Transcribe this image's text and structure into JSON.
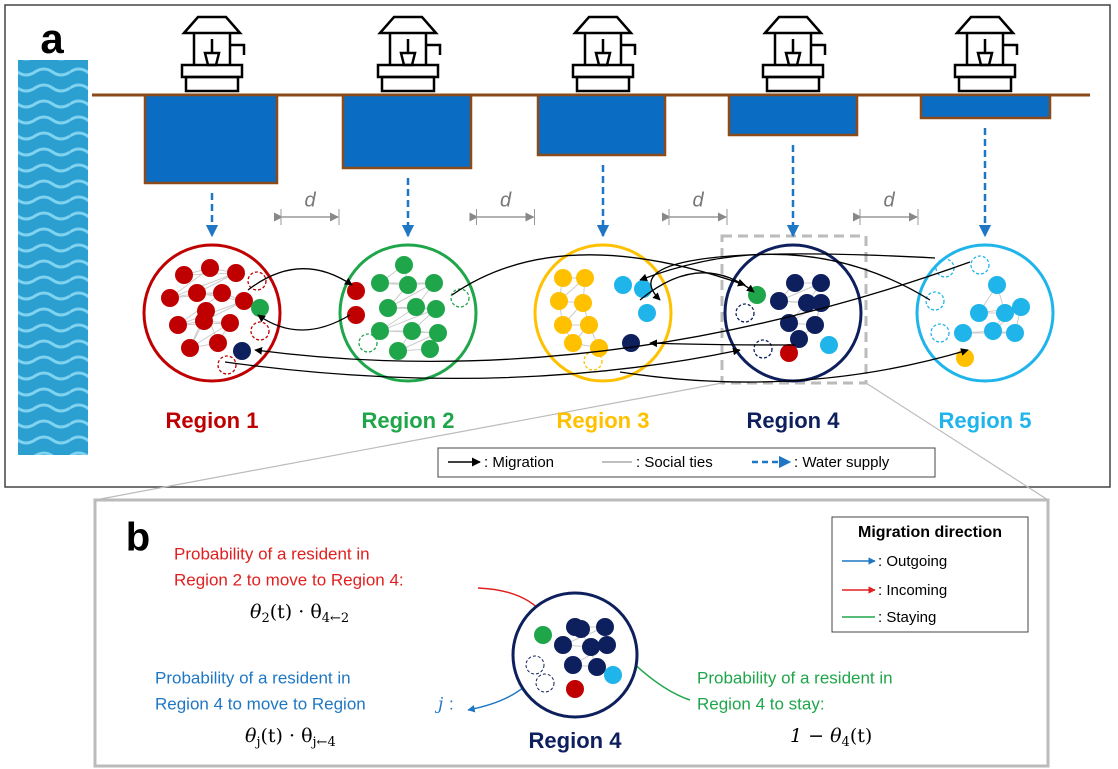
{
  "panel_a": {
    "label": "a",
    "distance_label": "d",
    "regions": [
      {
        "name": "Region 1",
        "color": "#c00000"
      },
      {
        "name": "Region 2",
        "color": "#1fa64a"
      },
      {
        "name": "Region 3",
        "color": "#ffc000"
      },
      {
        "name": "Region 4",
        "color": "#0d1f5c"
      },
      {
        "name": "Region 5",
        "color": "#1fb4ea"
      }
    ],
    "legend": {
      "migration": ": Migration",
      "social_ties": ": Social ties",
      "water_supply": ": Water supply"
    }
  },
  "panel_b": {
    "label": "b",
    "region": "Region 4",
    "incoming_text": [
      "Probability of a resident in",
      "Region 2 to move to Region 4:"
    ],
    "incoming_formula": [
      "θ",
      "2",
      "(t) · θ",
      "4←2"
    ],
    "outgoing_text": [
      "Probability of a resident in",
      "Region 4 to move to Region"
    ],
    "outgoing_var": "j",
    "outgoing_colon": ":",
    "outgoing_formula": [
      "θ",
      "j",
      "(t) · θ",
      "j←4"
    ],
    "staying_text": [
      "Probability of a resident in",
      "Region 4 to stay:"
    ],
    "staying_formula": [
      "1 − θ",
      "4",
      "(t)"
    ],
    "legend": {
      "title": "Migration direction",
      "outgoing": ": Outgoing",
      "incoming": ": Incoming",
      "staying": ": Staying"
    }
  }
}
